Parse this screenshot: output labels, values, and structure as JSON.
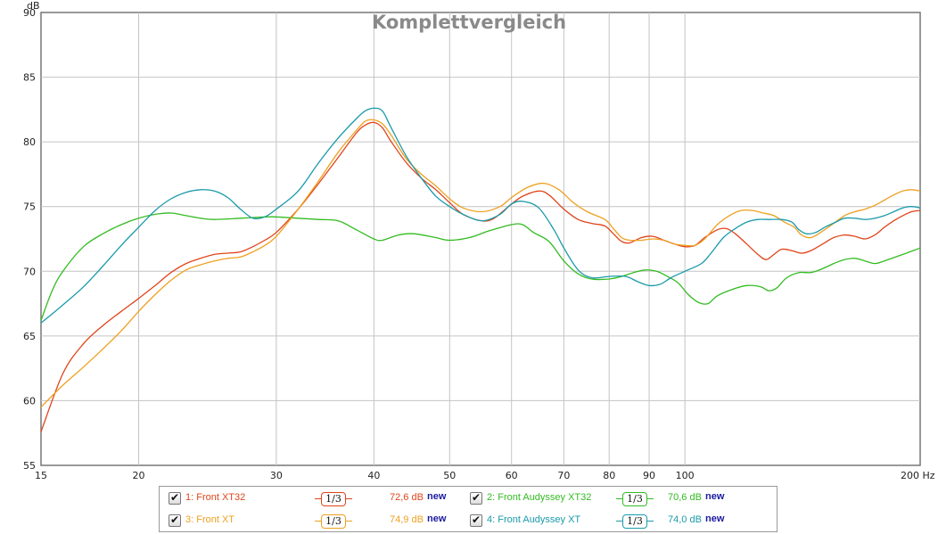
{
  "chart_data": {
    "type": "line",
    "title": "Komplettvergleich",
    "ylabel": "dB",
    "xlabel": "Hz",
    "xscale": "log",
    "xlim": [
      15,
      200
    ],
    "ylim": [
      55,
      90
    ],
    "grid": true,
    "x_ticks": [
      {
        "value": 15,
        "label": "15"
      },
      {
        "value": 20,
        "label": "20"
      },
      {
        "value": 30,
        "label": "30"
      },
      {
        "value": 40,
        "label": "40"
      },
      {
        "value": 50,
        "label": "50"
      },
      {
        "value": 60,
        "label": "60"
      },
      {
        "value": 70,
        "label": "70"
      },
      {
        "value": 80,
        "label": "80"
      },
      {
        "value": 90,
        "label": "90"
      },
      {
        "value": 100,
        "label": "100"
      },
      {
        "value": 200,
        "label": "200 Hz"
      }
    ],
    "y_ticks": [
      {
        "value": 55,
        "label": "55"
      },
      {
        "value": 60,
        "label": "60"
      },
      {
        "value": 65,
        "label": "65"
      },
      {
        "value": 70,
        "label": "70"
      },
      {
        "value": 75,
        "label": "75"
      },
      {
        "value": 80,
        "label": "80"
      },
      {
        "value": 85,
        "label": "85"
      },
      {
        "value": 90,
        "label": "90"
      }
    ],
    "series": [
      {
        "name": "1: Front XT32",
        "color": "#e0441a",
        "level": "72,6 dB",
        "smoothing": "1/3",
        "checked": true,
        "points": [
          [
            15,
            57.6
          ],
          [
            16,
            62.1
          ],
          [
            17,
            64.4
          ],
          [
            18,
            65.8
          ],
          [
            19,
            66.9
          ],
          [
            20,
            67.9
          ],
          [
            21,
            68.9
          ],
          [
            22,
            69.9
          ],
          [
            23,
            70.6
          ],
          [
            24,
            71
          ],
          [
            25,
            71.3
          ],
          [
            26,
            71.4
          ],
          [
            27,
            71.5
          ],
          [
            28,
            71.9
          ],
          [
            29,
            72.4
          ],
          [
            30,
            73
          ],
          [
            32,
            74.8
          ],
          [
            34,
            76.8
          ],
          [
            36,
            78.8
          ],
          [
            38,
            80.7
          ],
          [
            39,
            81.3
          ],
          [
            40,
            81.5
          ],
          [
            41,
            81.1
          ],
          [
            42,
            80.1
          ],
          [
            44,
            78.4
          ],
          [
            46,
            77.2
          ],
          [
            48,
            76.3
          ],
          [
            50,
            75.3
          ],
          [
            52,
            74.4
          ],
          [
            55,
            73.9
          ],
          [
            57,
            74.1
          ],
          [
            60,
            75.2
          ],
          [
            62,
            75.8
          ],
          [
            65,
            76.2
          ],
          [
            67,
            75.9
          ],
          [
            70,
            74.8
          ],
          [
            73,
            74
          ],
          [
            76,
            73.7
          ],
          [
            79,
            73.5
          ],
          [
            81,
            72.9
          ],
          [
            83,
            72.3
          ],
          [
            85,
            72.2
          ],
          [
            88,
            72.6
          ],
          [
            91,
            72.7
          ],
          [
            94,
            72.4
          ],
          [
            97,
            72.1
          ],
          [
            100,
            71.9
          ],
          [
            103,
            72
          ],
          [
            106,
            72.6
          ],
          [
            110,
            73.2
          ],
          [
            113,
            73.3
          ],
          [
            116,
            72.9
          ],
          [
            120,
            72.1
          ],
          [
            124,
            71.3
          ],
          [
            127,
            70.9
          ],
          [
            130,
            71.3
          ],
          [
            133,
            71.7
          ],
          [
            137,
            71.6
          ],
          [
            141,
            71.4
          ],
          [
            145,
            71.6
          ],
          [
            150,
            72.1
          ],
          [
            155,
            72.6
          ],
          [
            160,
            72.8
          ],
          [
            165,
            72.7
          ],
          [
            170,
            72.5
          ],
          [
            175,
            72.8
          ],
          [
            180,
            73.4
          ],
          [
            185,
            73.9
          ],
          [
            190,
            74.3
          ],
          [
            195,
            74.6
          ],
          [
            200,
            74.7
          ]
        ]
      },
      {
        "name": "2: Front Audyssey XT32",
        "color": "#33bb22",
        "level": "70,6 dB",
        "smoothing": "1/3",
        "checked": true,
        "points": [
          [
            15,
            66.2
          ],
          [
            15.5,
            68.5
          ],
          [
            16,
            70
          ],
          [
            17,
            71.9
          ],
          [
            18,
            72.9
          ],
          [
            19,
            73.6
          ],
          [
            20,
            74.1
          ],
          [
            21,
            74.4
          ],
          [
            22,
            74.5
          ],
          [
            23,
            74.3
          ],
          [
            24,
            74.1
          ],
          [
            25,
            74
          ],
          [
            27,
            74.1
          ],
          [
            29,
            74.2
          ],
          [
            30,
            74.2
          ],
          [
            32,
            74.1
          ],
          [
            34,
            74
          ],
          [
            36,
            73.9
          ],
          [
            38,
            73.2
          ],
          [
            40,
            72.5
          ],
          [
            41,
            72.4
          ],
          [
            43,
            72.8
          ],
          [
            45,
            72.9
          ],
          [
            48,
            72.6
          ],
          [
            50,
            72.4
          ],
          [
            53,
            72.6
          ],
          [
            56,
            73.1
          ],
          [
            60,
            73.6
          ],
          [
            62,
            73.6
          ],
          [
            64,
            73
          ],
          [
            67,
            72.3
          ],
          [
            70,
            70.8
          ],
          [
            73,
            69.8
          ],
          [
            76,
            69.4
          ],
          [
            80,
            69.4
          ],
          [
            83,
            69.6
          ],
          [
            86,
            69.9
          ],
          [
            89,
            70.1
          ],
          [
            92,
            70
          ],
          [
            95,
            69.6
          ],
          [
            98,
            69.1
          ],
          [
            101,
            68.2
          ],
          [
            104,
            67.6
          ],
          [
            107,
            67.5
          ],
          [
            110,
            68.1
          ],
          [
            115,
            68.6
          ],
          [
            120,
            68.9
          ],
          [
            125,
            68.8
          ],
          [
            128,
            68.5
          ],
          [
            131,
            68.7
          ],
          [
            135,
            69.5
          ],
          [
            140,
            69.9
          ],
          [
            145,
            69.9
          ],
          [
            150,
            70.2
          ],
          [
            155,
            70.6
          ],
          [
            160,
            70.9
          ],
          [
            165,
            71
          ],
          [
            170,
            70.8
          ],
          [
            175,
            70.6
          ],
          [
            180,
            70.8
          ],
          [
            190,
            71.3
          ],
          [
            200,
            71.8
          ]
        ]
      },
      {
        "name": "3: Front XT",
        "color": "#eea020",
        "level": "74,9 dB",
        "smoothing": "1/3",
        "checked": true,
        "points": [
          [
            15,
            59.5
          ],
          [
            16,
            61.2
          ],
          [
            17,
            62.6
          ],
          [
            18,
            64
          ],
          [
            19,
            65.4
          ],
          [
            20,
            66.9
          ],
          [
            21,
            68.2
          ],
          [
            22,
            69.3
          ],
          [
            23,
            70.1
          ],
          [
            24,
            70.5
          ],
          [
            25,
            70.8
          ],
          [
            26,
            71
          ],
          [
            27,
            71.1
          ],
          [
            28,
            71.5
          ],
          [
            29,
            72
          ],
          [
            30,
            72.7
          ],
          [
            32,
            74.8
          ],
          [
            34,
            77
          ],
          [
            36,
            79.2
          ],
          [
            38,
            80.9
          ],
          [
            39,
            81.6
          ],
          [
            40,
            81.7
          ],
          [
            41,
            81.4
          ],
          [
            42,
            80.6
          ],
          [
            44,
            78.7
          ],
          [
            46,
            77.5
          ],
          [
            48,
            76.6
          ],
          [
            50,
            75.6
          ],
          [
            52,
            74.9
          ],
          [
            55,
            74.6
          ],
          [
            58,
            75
          ],
          [
            60,
            75.7
          ],
          [
            63,
            76.5
          ],
          [
            66,
            76.8
          ],
          [
            69,
            76.3
          ],
          [
            72,
            75.3
          ],
          [
            75,
            74.6
          ],
          [
            79,
            74
          ],
          [
            81,
            73.3
          ],
          [
            83,
            72.6
          ],
          [
            85,
            72.4
          ],
          [
            88,
            72.4
          ],
          [
            91,
            72.5
          ],
          [
            94,
            72.4
          ],
          [
            97,
            72.1
          ],
          [
            100,
            72
          ],
          [
            103,
            72
          ],
          [
            106,
            72.5
          ],
          [
            110,
            73.6
          ],
          [
            114,
            74.3
          ],
          [
            118,
            74.7
          ],
          [
            122,
            74.7
          ],
          [
            126,
            74.5
          ],
          [
            130,
            74.3
          ],
          [
            134,
            73.8
          ],
          [
            138,
            73.4
          ],
          [
            141,
            72.8
          ],
          [
            145,
            72.6
          ],
          [
            150,
            73.1
          ],
          [
            155,
            73.7
          ],
          [
            160,
            74.3
          ],
          [
            165,
            74.6
          ],
          [
            170,
            74.8
          ],
          [
            175,
            75.1
          ],
          [
            180,
            75.5
          ],
          [
            185,
            75.9
          ],
          [
            190,
            76.2
          ],
          [
            195,
            76.3
          ],
          [
            200,
            76.2
          ]
        ]
      },
      {
        "name": "4: Front Audyssey XT",
        "color": "#1a9aaa",
        "level": "74,0 dB",
        "smoothing": "1/3",
        "checked": true,
        "points": [
          [
            15,
            66
          ],
          [
            16,
            67.4
          ],
          [
            17,
            68.8
          ],
          [
            18,
            70.4
          ],
          [
            19,
            72
          ],
          [
            20,
            73.4
          ],
          [
            21,
            74.7
          ],
          [
            22,
            75.6
          ],
          [
            23,
            76.1
          ],
          [
            24,
            76.3
          ],
          [
            25,
            76.2
          ],
          [
            26,
            75.7
          ],
          [
            27,
            74.8
          ],
          [
            28,
            74.1
          ],
          [
            29,
            74.2
          ],
          [
            30,
            74.8
          ],
          [
            32,
            76.2
          ],
          [
            34,
            78.4
          ],
          [
            36,
            80.3
          ],
          [
            38,
            81.8
          ],
          [
            39,
            82.4
          ],
          [
            40,
            82.6
          ],
          [
            41,
            82.4
          ],
          [
            42,
            81.2
          ],
          [
            44,
            78.9
          ],
          [
            46,
            77.2
          ],
          [
            48,
            75.8
          ],
          [
            50,
            75
          ],
          [
            52,
            74.4
          ],
          [
            55,
            73.9
          ],
          [
            58,
            74.4
          ],
          [
            60,
            75.2
          ],
          [
            62,
            75.4
          ],
          [
            65,
            74.9
          ],
          [
            68,
            73.2
          ],
          [
            70,
            71.8
          ],
          [
            73,
            70.1
          ],
          [
            76,
            69.5
          ],
          [
            80,
            69.6
          ],
          [
            84,
            69.6
          ],
          [
            87,
            69.2
          ],
          [
            90,
            68.9
          ],
          [
            93,
            69
          ],
          [
            96,
            69.5
          ],
          [
            100,
            70
          ],
          [
            105,
            70.6
          ],
          [
            108,
            71.4
          ],
          [
            112,
            72.6
          ],
          [
            116,
            73.3
          ],
          [
            120,
            73.8
          ],
          [
            124,
            74
          ],
          [
            128,
            74
          ],
          [
            133,
            74
          ],
          [
            137,
            73.8
          ],
          [
            140,
            73.2
          ],
          [
            143,
            72.9
          ],
          [
            147,
            73
          ],
          [
            151,
            73.4
          ],
          [
            156,
            73.8
          ],
          [
            160,
            74.1
          ],
          [
            165,
            74.1
          ],
          [
            170,
            74
          ],
          [
            175,
            74.1
          ],
          [
            180,
            74.3
          ],
          [
            185,
            74.6
          ],
          [
            190,
            74.9
          ],
          [
            195,
            75
          ],
          [
            200,
            74.9
          ]
        ]
      }
    ]
  },
  "legend": {
    "new_label": "new"
  }
}
